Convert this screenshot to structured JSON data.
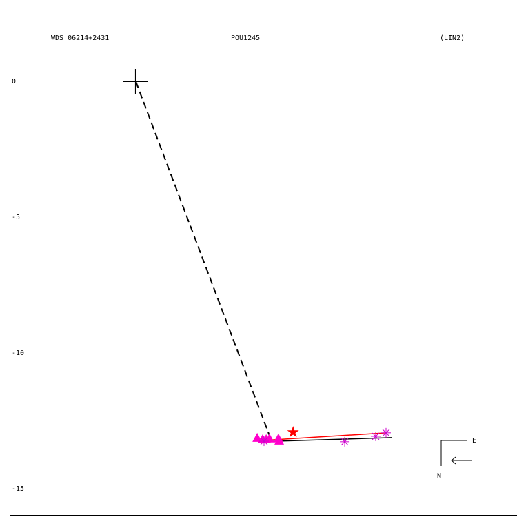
{
  "chart_data": {
    "type": "scatter",
    "title": "WDS 06214+2431",
    "subtitle": "POU1245",
    "annotation": "(LIN2)",
    "compass": {
      "east": "E",
      "north": "N"
    },
    "xlim": [
      -4.64,
      14.03
    ],
    "ylim": [
      -15.99,
      2.64
    ],
    "yticks": [
      0,
      -5,
      -10,
      -15
    ],
    "series": [
      {
        "marker": "dashed-line",
        "color": "#000000",
        "x": [
          0,
          5.0
        ],
        "y": [
          0,
          -13.25
        ]
      },
      {
        "marker": "line",
        "color": "#000000",
        "x": [
          4.52,
          9.42
        ],
        "y": [
          -13.27,
          -13.12
        ]
      },
      {
        "marker": "line",
        "color": "#ff0000",
        "x": [
          4.72,
          9.21
        ],
        "y": [
          -13.22,
          -12.94
        ]
      },
      {
        "marker": "plus",
        "color": "#000000",
        "x": [
          0
        ],
        "y": [
          0
        ]
      },
      {
        "marker": "triangle",
        "color": "#ff00cc",
        "x": [
          4.47,
          4.67,
          4.8,
          4.92,
          5.28,
          5.25
        ],
        "y": [
          -13.12,
          -13.17,
          -13.17,
          -13.14,
          -13.22,
          -13.14
        ]
      },
      {
        "marker": "asterisk",
        "color": "#cc00cc",
        "x": [
          4.72,
          7.69,
          8.83,
          9.21
        ],
        "y": [
          -13.25,
          -13.27,
          -13.07,
          -12.94
        ]
      },
      {
        "marker": "star",
        "color": "#ff0000",
        "x": [
          5.79
        ],
        "y": [
          -12.92
        ]
      }
    ]
  }
}
